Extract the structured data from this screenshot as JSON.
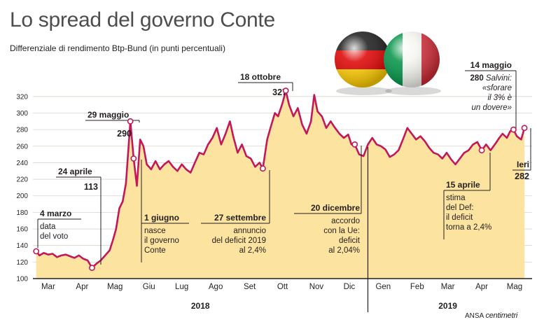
{
  "title": "Lo spread del governo Conte",
  "subtitle": "Differenziale di rendimento Btp-Bund (in punti percentuali)",
  "credit": {
    "agency": "ANSA",
    "brand": "centimetri"
  },
  "icons": [
    "germany-flag-sphere-icon",
    "italy-flag-sphere-icon"
  ],
  "colors": {
    "line": "#c2185b",
    "area": "#fce3a0",
    "marker": "#ffffff",
    "text": "#231f20",
    "title": "#4d4d4d"
  },
  "chart_data": {
    "type": "area",
    "title": "Lo spread del governo Conte",
    "subtitle": "Differenziale di rendimento Btp-Bund (in punti percentuali)",
    "xlabel": "",
    "ylabel": "",
    "ylim": [
      100,
      330
    ],
    "y_ticks": [
      100,
      120,
      140,
      160,
      180,
      200,
      220,
      240,
      260,
      280,
      300,
      320
    ],
    "grid": "horizontal",
    "x_ticks": [
      {
        "date": "2018-03-15",
        "label": "Mar"
      },
      {
        "date": "2018-04-15",
        "label": "Apr"
      },
      {
        "date": "2018-05-15",
        "label": "Mag"
      },
      {
        "date": "2018-06-15",
        "label": "Giu"
      },
      {
        "date": "2018-07-15",
        "label": "Lug"
      },
      {
        "date": "2018-08-15",
        "label": "Ago"
      },
      {
        "date": "2018-09-15",
        "label": "Set"
      },
      {
        "date": "2018-10-15",
        "label": "Ott"
      },
      {
        "date": "2018-11-15",
        "label": "Nov"
      },
      {
        "date": "2018-12-15",
        "label": "Dic"
      },
      {
        "date": "2019-01-15",
        "label": "Gen"
      },
      {
        "date": "2019-02-15",
        "label": "Feb"
      },
      {
        "date": "2019-03-15",
        "label": "Mar"
      },
      {
        "date": "2019-04-15",
        "label": "Apr"
      },
      {
        "date": "2019-05-15",
        "label": "Mag"
      }
    ],
    "years": [
      {
        "label": "2018",
        "center": "2018-08-01"
      },
      {
        "label": "2019",
        "center": "2019-03-15"
      }
    ],
    "year_divider": "2019-01-01",
    "series": [
      {
        "points": [
          [
            "2018-03-04",
            133
          ],
          [
            "2018-03-07",
            128
          ],
          [
            "2018-03-11",
            131
          ],
          [
            "2018-03-15",
            129
          ],
          [
            "2018-03-19",
            130
          ],
          [
            "2018-03-23",
            126
          ],
          [
            "2018-03-27",
            128
          ],
          [
            "2018-03-31",
            129
          ],
          [
            "2018-04-04",
            127
          ],
          [
            "2018-04-08",
            125
          ],
          [
            "2018-04-12",
            128
          ],
          [
            "2018-04-16",
            124
          ],
          [
            "2018-04-20",
            122
          ],
          [
            "2018-04-24",
            113
          ],
          [
            "2018-04-28",
            118
          ],
          [
            "2018-05-02",
            122
          ],
          [
            "2018-05-06",
            128
          ],
          [
            "2018-05-10",
            134
          ],
          [
            "2018-05-13",
            146
          ],
          [
            "2018-05-16",
            160
          ],
          [
            "2018-05-19",
            185
          ],
          [
            "2018-05-22",
            193
          ],
          [
            "2018-05-25",
            215
          ],
          [
            "2018-05-29",
            290
          ],
          [
            "2018-06-01",
            245
          ],
          [
            "2018-06-04",
            212
          ],
          [
            "2018-06-07",
            268
          ],
          [
            "2018-06-10",
            260
          ],
          [
            "2018-06-13",
            238
          ],
          [
            "2018-06-17",
            232
          ],
          [
            "2018-06-21",
            242
          ],
          [
            "2018-06-25",
            232
          ],
          [
            "2018-06-29",
            238
          ],
          [
            "2018-07-03",
            242
          ],
          [
            "2018-07-07",
            235
          ],
          [
            "2018-07-11",
            230
          ],
          [
            "2018-07-15",
            238
          ],
          [
            "2018-07-19",
            232
          ],
          [
            "2018-07-23",
            228
          ],
          [
            "2018-07-27",
            240
          ],
          [
            "2018-07-31",
            252
          ],
          [
            "2018-08-04",
            250
          ],
          [
            "2018-08-08",
            262
          ],
          [
            "2018-08-12",
            270
          ],
          [
            "2018-08-16",
            282
          ],
          [
            "2018-08-20",
            262
          ],
          [
            "2018-08-24",
            275
          ],
          [
            "2018-08-28",
            290
          ],
          [
            "2018-08-31",
            272
          ],
          [
            "2018-09-04",
            252
          ],
          [
            "2018-09-08",
            262
          ],
          [
            "2018-09-12",
            248
          ],
          [
            "2018-09-16",
            245
          ],
          [
            "2018-09-20",
            235
          ],
          [
            "2018-09-24",
            240
          ],
          [
            "2018-09-27",
            233
          ],
          [
            "2018-10-01",
            268
          ],
          [
            "2018-10-04",
            282
          ],
          [
            "2018-10-08",
            300
          ],
          [
            "2018-10-11",
            296
          ],
          [
            "2018-10-15",
            312
          ],
          [
            "2018-10-18",
            327
          ],
          [
            "2018-10-21",
            310
          ],
          [
            "2018-10-25",
            296
          ],
          [
            "2018-10-29",
            306
          ],
          [
            "2018-11-02",
            286
          ],
          [
            "2018-11-06",
            275
          ],
          [
            "2018-11-10",
            290
          ],
          [
            "2018-11-13",
            322
          ],
          [
            "2018-11-16",
            302
          ],
          [
            "2018-11-20",
            296
          ],
          [
            "2018-11-24",
            282
          ],
          [
            "2018-11-28",
            290
          ],
          [
            "2018-12-02",
            282
          ],
          [
            "2018-12-06",
            275
          ],
          [
            "2018-12-10",
            270
          ],
          [
            "2018-12-14",
            274
          ],
          [
            "2018-12-17",
            262
          ],
          [
            "2018-12-20",
            262
          ],
          [
            "2018-12-24",
            250
          ],
          [
            "2018-12-28",
            248
          ],
          [
            "2019-01-01",
            262
          ],
          [
            "2019-01-05",
            270
          ],
          [
            "2019-01-09",
            262
          ],
          [
            "2019-01-13",
            260
          ],
          [
            "2019-01-17",
            256
          ],
          [
            "2019-01-21",
            247
          ],
          [
            "2019-01-25",
            250
          ],
          [
            "2019-01-29",
            255
          ],
          [
            "2019-02-02",
            268
          ],
          [
            "2019-02-06",
            282
          ],
          [
            "2019-02-10",
            275
          ],
          [
            "2019-02-14",
            268
          ],
          [
            "2019-02-18",
            272
          ],
          [
            "2019-02-22",
            266
          ],
          [
            "2019-02-26",
            258
          ],
          [
            "2019-03-02",
            252
          ],
          [
            "2019-03-06",
            250
          ],
          [
            "2019-03-10",
            245
          ],
          [
            "2019-03-14",
            252
          ],
          [
            "2019-03-18",
            244
          ],
          [
            "2019-03-22",
            238
          ],
          [
            "2019-03-26",
            245
          ],
          [
            "2019-03-30",
            252
          ],
          [
            "2019-04-03",
            255
          ],
          [
            "2019-04-07",
            262
          ],
          [
            "2019-04-11",
            265
          ],
          [
            "2019-04-15",
            255
          ],
          [
            "2019-04-19",
            262
          ],
          [
            "2019-04-23",
            255
          ],
          [
            "2019-04-27",
            262
          ],
          [
            "2019-05-01",
            270
          ],
          [
            "2019-05-04",
            275
          ],
          [
            "2019-05-08",
            270
          ],
          [
            "2019-05-11",
            278
          ],
          [
            "2019-05-14",
            280
          ],
          [
            "2019-05-17",
            272
          ],
          [
            "2019-05-21",
            268
          ],
          [
            "2019-05-24",
            282
          ]
        ]
      }
    ],
    "annotations": [
      {
        "id": "4-marzo",
        "date": "2018-03-04",
        "value": 133,
        "date_label": "4 marzo",
        "value_label": "",
        "lines": [
          "data",
          "del voto"
        ]
      },
      {
        "id": "24-aprile",
        "date": "2018-04-24",
        "value": 113,
        "date_label": "24 aprile",
        "value_label": "113",
        "lines": []
      },
      {
        "id": "29-maggio",
        "date": "2018-05-29",
        "value": 290,
        "date_label": "29 maggio",
        "value_label": "290",
        "lines": []
      },
      {
        "id": "1-giugno",
        "date": "2018-06-01",
        "value": 245,
        "date_label": "1 giugno",
        "value_label": "",
        "lines": [
          "nasce",
          "il governo",
          "Conte"
        ]
      },
      {
        "id": "27-settembre",
        "date": "2018-09-27",
        "value": 233,
        "date_label": "27 settembre",
        "value_label": "",
        "lines": [
          "annuncio",
          "del deficit 2019",
          "al 2,4%"
        ]
      },
      {
        "id": "18-ottobre",
        "date": "2018-10-18",
        "value": 327,
        "date_label": "18 ottobre",
        "value_label": "327",
        "lines": []
      },
      {
        "id": "20-dicembre",
        "date": "2018-12-20",
        "value": 262,
        "date_label": "20 dicembre",
        "value_label": "",
        "lines": [
          "accordo",
          "con la Ue:",
          "deficit",
          "al 2,04%"
        ]
      },
      {
        "id": "15-aprile",
        "date": "2019-04-15",
        "value": 255,
        "date_label": "15 aprile",
        "value_label": "",
        "lines": [
          "stima",
          "del Def:",
          "il deficit",
          "torna a 2,4%"
        ]
      },
      {
        "id": "14-maggio",
        "date": "2019-05-14",
        "value": 280,
        "date_label": "14 maggio",
        "value_label": "280",
        "lines": [
          "Salvini:",
          "«sforare",
          "il 3% è",
          "un dovere»"
        ]
      },
      {
        "id": "ieri",
        "date": "2019-05-24",
        "value": 282,
        "date_label": "Ieri",
        "value_label": "282",
        "lines": []
      }
    ]
  }
}
